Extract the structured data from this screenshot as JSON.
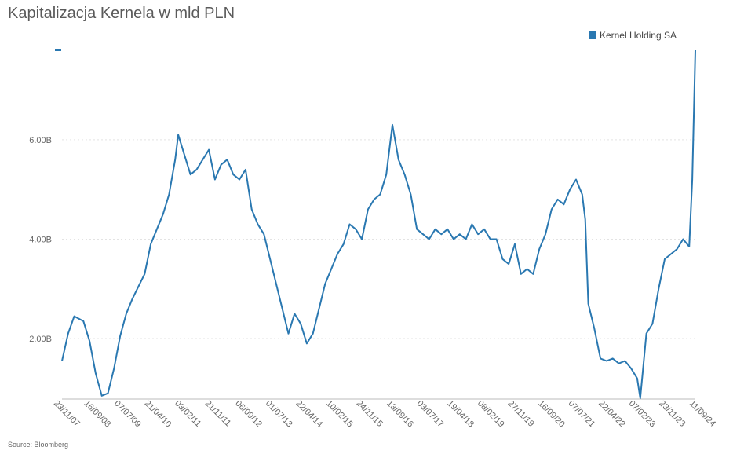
{
  "title": "Kapitalizacja Kernela w mld PLN",
  "source": "Source: Bloomberg",
  "chart_data": {
    "type": "line",
    "title": "Kapitalizacja Kernela w mld PLN",
    "xlabel": "",
    "ylabel": "",
    "ylim": [
      0.8,
      7.8
    ],
    "y_ticks": [
      "2.00B",
      "4.00B",
      "6.00B"
    ],
    "y_tick_values": [
      2,
      4,
      6
    ],
    "x_tick_labels": [
      "23/11/07",
      "16/09/08",
      "07/07/09",
      "21/04/10",
      "03/02/11",
      "21/11/11",
      "06/09/12",
      "01/07/13",
      "22/04/14",
      "10/02/15",
      "24/11/15",
      "13/09/16",
      "03/07/17",
      "19/04/18",
      "08/02/19",
      "27/11/19",
      "16/09/20",
      "07/07/21",
      "22/04/22",
      "07/02/23",
      "23/11/23",
      "11/09/24"
    ],
    "grid": "horizontal dotted",
    "legend_position": "top-right",
    "series": [
      {
        "name": "Kernel Holding SA",
        "color": "#2a78b1",
        "x": [
          "2007-11",
          "2008-01",
          "2008-03",
          "2008-06",
          "2008-08",
          "2008-10",
          "2008-12",
          "2009-02",
          "2009-04",
          "2009-06",
          "2009-08",
          "2009-10",
          "2009-12",
          "2010-02",
          "2010-04",
          "2010-06",
          "2010-08",
          "2010-10",
          "2010-12",
          "2011-01",
          "2011-03",
          "2011-05",
          "2011-07",
          "2011-09",
          "2011-11",
          "2012-01",
          "2012-03",
          "2012-05",
          "2012-07",
          "2012-09",
          "2012-11",
          "2013-01",
          "2013-03",
          "2013-05",
          "2013-07",
          "2013-09",
          "2013-11",
          "2014-01",
          "2014-03",
          "2014-05",
          "2014-07",
          "2014-09",
          "2014-11",
          "2015-01",
          "2015-03",
          "2015-05",
          "2015-07",
          "2015-09",
          "2015-11",
          "2016-01",
          "2016-03",
          "2016-05",
          "2016-07",
          "2016-09",
          "2016-11",
          "2017-01",
          "2017-03",
          "2017-05",
          "2017-07",
          "2017-09",
          "2017-11",
          "2018-01",
          "2018-03",
          "2018-05",
          "2018-07",
          "2018-09",
          "2018-11",
          "2019-01",
          "2019-03",
          "2019-05",
          "2019-07",
          "2019-09",
          "2019-11",
          "2020-01",
          "2020-03",
          "2020-05",
          "2020-07",
          "2020-09",
          "2020-11",
          "2021-01",
          "2021-03",
          "2021-05",
          "2021-07",
          "2021-09",
          "2021-11",
          "2022-01",
          "2022-02",
          "2022-03",
          "2022-05",
          "2022-07",
          "2022-09",
          "2022-11",
          "2023-01",
          "2023-03",
          "2023-05",
          "2023-07",
          "2023-08",
          "2023-10",
          "2023-12",
          "2024-02",
          "2024-04",
          "2024-06",
          "2024-08",
          "2024-10",
          "2024-12",
          "2025-01",
          "2025-02"
        ],
        "values": [
          1.55,
          2.1,
          2.45,
          2.35,
          1.95,
          1.3,
          0.85,
          0.9,
          1.4,
          2.05,
          2.5,
          2.8,
          3.05,
          3.3,
          3.9,
          4.2,
          4.5,
          4.9,
          5.6,
          6.1,
          5.7,
          5.3,
          5.4,
          5.6,
          5.8,
          5.2,
          5.5,
          5.6,
          5.3,
          5.2,
          5.4,
          4.6,
          4.3,
          4.1,
          3.6,
          3.1,
          2.6,
          2.1,
          2.5,
          2.3,
          1.9,
          2.1,
          2.6,
          3.1,
          3.4,
          3.7,
          3.9,
          4.3,
          4.2,
          4.0,
          4.6,
          4.8,
          4.9,
          5.3,
          6.3,
          5.6,
          5.3,
          4.9,
          4.2,
          4.1,
          4.0,
          4.2,
          4.1,
          4.2,
          4.0,
          4.1,
          4.0,
          4.3,
          4.1,
          4.2,
          4.0,
          4.0,
          3.6,
          3.5,
          3.9,
          3.3,
          3.4,
          3.3,
          3.8,
          4.1,
          4.6,
          4.8,
          4.7,
          5.0,
          5.2,
          4.9,
          4.4,
          2.7,
          2.2,
          1.6,
          1.55,
          1.6,
          1.5,
          1.55,
          1.4,
          1.2,
          0.8,
          2.1,
          2.3,
          3.0,
          3.6,
          3.7,
          3.8,
          4.0,
          3.85,
          5.2,
          7.8
        ]
      }
    ]
  }
}
